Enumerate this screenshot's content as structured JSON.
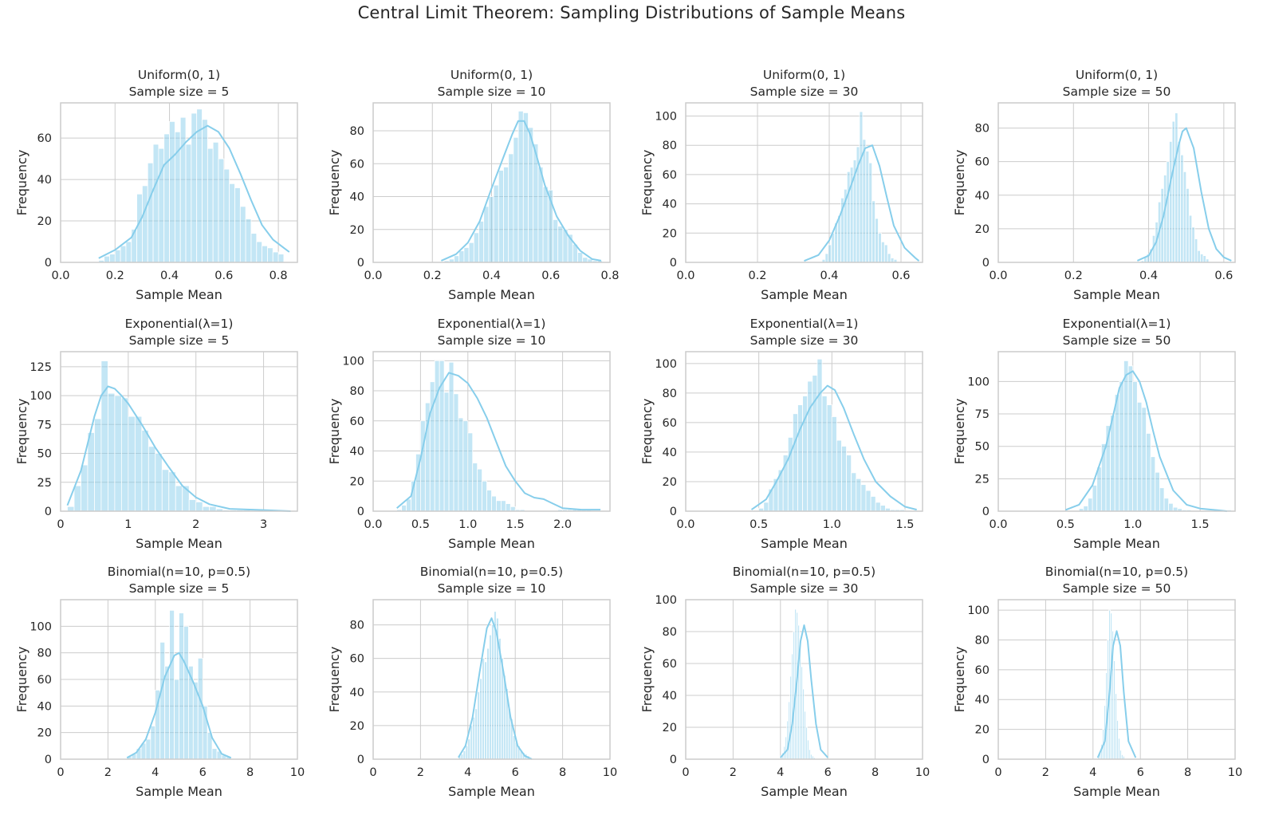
{
  "figure": {
    "title": "Central Limit Theorem: Sampling Distributions of Sample Means",
    "bar_color": "#87CEEB",
    "background": "#ffffff",
    "grid_color": "#cccccc"
  },
  "chart_data": [
    {
      "type": "histogram",
      "title": "Uniform(0, 1)",
      "subtitle": "Sample size = 5",
      "xlabel": "Sample Mean",
      "ylabel": "Frequency",
      "grid": true,
      "xlim": [
        0.0,
        0.87
      ],
      "ylim": [
        0,
        77
      ],
      "xticks": [
        0.0,
        0.2,
        0.4,
        0.6,
        0.8
      ],
      "xtick_labels": [
        "0.0",
        "0.2",
        "0.4",
        "0.6",
        "0.8"
      ],
      "yticks": [
        0,
        20,
        40,
        60
      ],
      "ytick_labels": [
        "0",
        "20",
        "40",
        "60"
      ],
      "bin_start": 0.14,
      "bin_width": 0.02,
      "values": [
        1,
        3,
        4,
        6,
        8,
        10,
        16,
        33,
        37,
        48,
        57,
        55,
        62,
        68,
        63,
        70,
        57,
        72,
        74,
        69,
        55,
        58,
        50,
        45,
        38,
        36,
        27,
        21,
        14,
        10,
        8,
        7,
        5,
        4
      ],
      "kde_x": [
        0.14,
        0.2,
        0.26,
        0.3,
        0.34,
        0.38,
        0.42,
        0.46,
        0.5,
        0.54,
        0.58,
        0.62,
        0.66,
        0.7,
        0.74,
        0.78,
        0.82,
        0.84
      ],
      "kde_y": [
        2,
        6,
        12,
        22,
        35,
        47,
        52,
        58,
        63,
        66,
        63,
        55,
        43,
        30,
        18,
        11,
        7,
        5
      ]
    },
    {
      "type": "histogram",
      "title": "Uniform(0, 1)",
      "subtitle": "Sample size = 10",
      "xlabel": "Sample Mean",
      "ylabel": "Frequency",
      "grid": true,
      "xlim": [
        0.0,
        0.8
      ],
      "ylim": [
        0,
        97
      ],
      "xticks": [
        0.0,
        0.2,
        0.4,
        0.6,
        0.8
      ],
      "xtick_labels": [
        "0.0",
        "0.2",
        "0.4",
        "0.6",
        "0.8"
      ],
      "yticks": [
        0,
        20,
        40,
        60,
        80
      ],
      "ytick_labels": [
        "0",
        "20",
        "40",
        "60",
        "80"
      ],
      "bin_start": 0.24,
      "bin_width": 0.0167,
      "values": [
        1,
        2,
        4,
        7,
        9,
        12,
        18,
        25,
        34,
        40,
        47,
        56,
        58,
        66,
        76,
        92,
        91,
        82,
        72,
        58,
        46,
        44,
        26,
        22,
        20,
        17,
        11,
        6,
        3,
        2,
        1,
        1
      ],
      "kde_x": [
        0.23,
        0.28,
        0.32,
        0.36,
        0.4,
        0.44,
        0.47,
        0.49,
        0.51,
        0.53,
        0.55,
        0.58,
        0.62,
        0.66,
        0.7,
        0.74,
        0.77
      ],
      "kde_y": [
        1,
        5,
        12,
        25,
        45,
        64,
        78,
        86,
        86,
        78,
        66,
        47,
        28,
        16,
        7,
        2,
        1
      ]
    },
    {
      "type": "histogram",
      "title": "Uniform(0, 1)",
      "subtitle": "Sample size = 30",
      "xlabel": "Sample Mean",
      "ylabel": "Frequency",
      "grid": true,
      "xlim": [
        0.0,
        0.66
      ],
      "ylim": [
        0,
        109
      ],
      "xticks": [
        0.0,
        0.2,
        0.4,
        0.6
      ],
      "xtick_labels": [
        "0.0",
        "0.2",
        "0.4",
        "0.6"
      ],
      "yticks": [
        0,
        20,
        40,
        60,
        80,
        100
      ],
      "ytick_labels": [
        "0",
        "20",
        "40",
        "60",
        "80",
        "100"
      ],
      "bin_start": 0.38,
      "bin_width": 0.0087,
      "values": [
        2,
        6,
        12,
        20,
        27,
        32,
        44,
        50,
        62,
        65,
        70,
        79,
        103,
        84,
        76,
        68,
        42,
        30,
        20,
        14,
        12,
        6,
        3,
        2
      ],
      "kde_x": [
        0.33,
        0.37,
        0.4,
        0.43,
        0.46,
        0.48,
        0.5,
        0.52,
        0.54,
        0.56,
        0.58,
        0.61,
        0.64,
        0.65
      ],
      "kde_y": [
        1,
        5,
        15,
        32,
        52,
        66,
        78,
        80,
        66,
        45,
        25,
        10,
        3,
        1
      ]
    },
    {
      "type": "histogram",
      "title": "Uniform(0, 1)",
      "subtitle": "Sample size = 50",
      "xlabel": "Sample Mean",
      "ylabel": "Frequency",
      "grid": true,
      "xlim": [
        0.0,
        0.63
      ],
      "ylim": [
        0,
        95
      ],
      "xticks": [
        0.0,
        0.2,
        0.4,
        0.6
      ],
      "xtick_labels": [
        "0.0",
        "0.2",
        "0.4",
        "0.6"
      ],
      "yticks": [
        0,
        20,
        40,
        60,
        80
      ],
      "ytick_labels": [
        "0",
        "20",
        "40",
        "60",
        "80"
      ],
      "bin_start": 0.38,
      "bin_width": 0.0075,
      "values": [
        1,
        3,
        5,
        8,
        16,
        24,
        36,
        44,
        52,
        60,
        72,
        84,
        89,
        72,
        64,
        54,
        44,
        28,
        21,
        14,
        7,
        5,
        4,
        2
      ],
      "kde_x": [
        0.37,
        0.4,
        0.42,
        0.44,
        0.46,
        0.48,
        0.49,
        0.5,
        0.52,
        0.54,
        0.56,
        0.58,
        0.6,
        0.62
      ],
      "kde_y": [
        1,
        4,
        12,
        28,
        50,
        70,
        78,
        80,
        68,
        42,
        20,
        8,
        3,
        1
      ]
    },
    {
      "type": "histogram",
      "title": "Exponential(λ=1)",
      "subtitle": "Sample size = 5",
      "xlabel": "Sample Mean",
      "ylabel": "Frequency",
      "grid": true,
      "xlim": [
        0.0,
        3.5
      ],
      "ylim": [
        0,
        138
      ],
      "xticks": [
        0,
        1,
        2,
        3
      ],
      "xtick_labels": [
        "0",
        "1",
        "2",
        "3"
      ],
      "yticks": [
        0,
        25,
        50,
        75,
        100,
        125
      ],
      "ytick_labels": [
        "0",
        "25",
        "50",
        "75",
        "100",
        "125"
      ],
      "bin_start": 0.1,
      "bin_width": 0.1,
      "values": [
        4,
        22,
        40,
        68,
        80,
        130,
        102,
        100,
        98,
        82,
        82,
        70,
        56,
        50,
        36,
        34,
        22,
        22,
        10,
        8,
        4,
        4,
        2,
        1,
        1,
        1,
        1,
        0,
        0,
        0,
        0,
        1,
        1
      ],
      "kde_x": [
        0.1,
        0.3,
        0.5,
        0.6,
        0.7,
        0.8,
        0.9,
        1.0,
        1.2,
        1.4,
        1.6,
        1.8,
        2.0,
        2.2,
        2.5,
        3.0,
        3.4
      ],
      "kde_y": [
        5,
        35,
        82,
        100,
        108,
        106,
        100,
        93,
        75,
        55,
        38,
        22,
        12,
        6,
        2,
        1,
        0
      ]
    },
    {
      "type": "histogram",
      "title": "Exponential(λ=1)",
      "subtitle": "Sample size = 10",
      "xlabel": "Sample Mean",
      "ylabel": "Frequency",
      "grid": true,
      "xlim": [
        0.0,
        2.5
      ],
      "ylim": [
        0,
        106
      ],
      "xticks": [
        0.0,
        0.5,
        1.0,
        1.5,
        2.0
      ],
      "xtick_labels": [
        "0.0",
        "0.5",
        "1.0",
        "1.5",
        "2.0"
      ],
      "yticks": [
        0,
        20,
        40,
        60,
        80,
        100
      ],
      "ytick_labels": [
        "0",
        "20",
        "40",
        "60",
        "80",
        "100"
      ],
      "bin_start": 0.2,
      "bin_width": 0.05,
      "values": [
        0,
        1,
        4,
        8,
        20,
        38,
        60,
        72,
        86,
        100,
        100,
        79,
        99,
        78,
        62,
        60,
        52,
        32,
        28,
        20,
        14,
        10,
        7,
        7,
        5,
        3,
        1,
        1,
        0,
        0,
        0,
        0,
        0,
        0,
        0,
        1,
        1,
        1,
        1,
        1,
        1,
        1
      ],
      "kde_x": [
        0.25,
        0.4,
        0.5,
        0.6,
        0.7,
        0.8,
        0.9,
        1.0,
        1.1,
        1.2,
        1.3,
        1.4,
        1.5,
        1.6,
        1.7,
        1.8,
        1.9,
        2.0,
        2.2,
        2.4
      ],
      "kde_y": [
        2,
        10,
        35,
        65,
        82,
        92,
        90,
        85,
        75,
        62,
        46,
        30,
        20,
        12,
        9,
        8,
        5,
        2,
        1,
        1
      ]
    },
    {
      "type": "histogram",
      "title": "Exponential(λ=1)",
      "subtitle": "Sample size = 30",
      "xlabel": "Sample Mean",
      "ylabel": "Frequency",
      "grid": true,
      "xlim": [
        0.0,
        1.62
      ],
      "ylim": [
        0,
        108
      ],
      "xticks": [
        0.0,
        0.5,
        1.0,
        1.5
      ],
      "xtick_labels": [
        "0.0",
        "0.5",
        "1.0",
        "1.5"
      ],
      "yticks": [
        0,
        20,
        40,
        60,
        80,
        100
      ],
      "ytick_labels": [
        "0",
        "20",
        "40",
        "60",
        "80",
        "100"
      ],
      "bin_start": 0.5,
      "bin_width": 0.0333,
      "values": [
        2,
        6,
        15,
        22,
        28,
        38,
        50,
        66,
        72,
        78,
        88,
        92,
        103,
        78,
        72,
        64,
        48,
        44,
        38,
        26,
        22,
        18,
        14,
        10,
        6,
        4,
        2,
        1,
        1,
        1
      ],
      "kde_x": [
        0.45,
        0.55,
        0.62,
        0.7,
        0.78,
        0.85,
        0.92,
        0.97,
        1.02,
        1.08,
        1.15,
        1.22,
        1.3,
        1.4,
        1.5,
        1.58
      ],
      "kde_y": [
        1,
        8,
        20,
        35,
        55,
        70,
        80,
        85,
        82,
        70,
        52,
        35,
        20,
        10,
        3,
        1
      ]
    },
    {
      "type": "histogram",
      "title": "Exponential(λ=1)",
      "subtitle": "Sample size = 50",
      "xlabel": "Sample Mean",
      "ylabel": "Frequency",
      "grid": true,
      "xlim": [
        0.0,
        1.76
      ],
      "ylim": [
        0,
        123
      ],
      "xticks": [
        0.0,
        0.5,
        1.0,
        1.5
      ],
      "xtick_labels": [
        "0.0",
        "0.5",
        "1.0",
        "1.5"
      ],
      "yticks": [
        0,
        25,
        50,
        75,
        100
      ],
      "ytick_labels": [
        "0",
        "25",
        "50",
        "75",
        "100"
      ],
      "bin_start": 0.6,
      "bin_width": 0.0333,
      "values": [
        2,
        4,
        10,
        20,
        34,
        52,
        66,
        74,
        90,
        100,
        116,
        112,
        100,
        84,
        80,
        60,
        42,
        30,
        18,
        10,
        6,
        3,
        2,
        1,
        1,
        0,
        0,
        0,
        0,
        0,
        0,
        0,
        0,
        1
      ],
      "kde_x": [
        0.5,
        0.6,
        0.7,
        0.8,
        0.85,
        0.9,
        0.95,
        1.0,
        1.05,
        1.1,
        1.15,
        1.2,
        1.3,
        1.4,
        1.5,
        1.7
      ],
      "kde_y": [
        1,
        5,
        20,
        50,
        72,
        95,
        105,
        108,
        100,
        84,
        62,
        42,
        16,
        5,
        2,
        0
      ]
    },
    {
      "type": "histogram",
      "title": "Binomial(n=10, p=0.5)",
      "subtitle": "Sample size = 5",
      "xlabel": "Sample Mean",
      "ylabel": "Frequency",
      "grid": true,
      "xlim": [
        0,
        10
      ],
      "ylim": [
        0,
        120
      ],
      "xticks": [
        0,
        2,
        4,
        6,
        8,
        10
      ],
      "xtick_labels": [
        "0",
        "2",
        "4",
        "6",
        "8",
        "10"
      ],
      "yticks": [
        0,
        20,
        40,
        60,
        80,
        100
      ],
      "ytick_labels": [
        "0",
        "20",
        "40",
        "60",
        "80",
        "100"
      ],
      "bin_start": 2.8,
      "bin_width": 0.2,
      "values": [
        2,
        4,
        8,
        12,
        15,
        25,
        52,
        88,
        70,
        112,
        60,
        110,
        100,
        70,
        58,
        76,
        40,
        20,
        8,
        6,
        3,
        2
      ],
      "kde_x": [
        2.8,
        3.2,
        3.6,
        4.0,
        4.4,
        4.8,
        5.0,
        5.2,
        5.6,
        6.0,
        6.4,
        6.8,
        7.2
      ],
      "kde_y": [
        1,
        5,
        15,
        35,
        62,
        78,
        80,
        74,
        58,
        40,
        16,
        4,
        1
      ]
    },
    {
      "type": "histogram",
      "title": "Binomial(n=10, p=0.5)",
      "subtitle": "Sample size = 10",
      "xlabel": "Sample Mean",
      "ylabel": "Frequency",
      "grid": true,
      "xlim": [
        0,
        10
      ],
      "ylim": [
        0,
        95
      ],
      "xticks": [
        0,
        2,
        4,
        6,
        8,
        10
      ],
      "xtick_labels": [
        "0",
        "2",
        "4",
        "6",
        "8",
        "10"
      ],
      "yticks": [
        0,
        20,
        40,
        60,
        80
      ],
      "ytick_labels": [
        "0",
        "20",
        "40",
        "60",
        "80"
      ],
      "bin_start": 3.6,
      "bin_width": 0.1,
      "values": [
        2,
        3,
        5,
        8,
        12,
        20,
        25,
        30,
        40,
        48,
        60,
        58,
        66,
        74,
        80,
        88,
        84,
        72,
        60,
        50,
        42,
        30,
        24,
        14,
        10,
        8,
        5,
        4,
        3,
        2,
        1
      ],
      "kde_x": [
        3.6,
        3.9,
        4.2,
        4.5,
        4.8,
        5.0,
        5.2,
        5.5,
        5.8,
        6.1,
        6.4,
        6.7
      ],
      "kde_y": [
        1,
        8,
        25,
        52,
        78,
        84,
        76,
        52,
        25,
        8,
        2,
        0
      ]
    },
    {
      "type": "histogram",
      "title": "Binomial(n=10, p=0.5)",
      "subtitle": "Sample size = 30",
      "xlabel": "Sample Mean",
      "ylabel": "Frequency",
      "grid": true,
      "xlim": [
        0,
        10
      ],
      "ylim": [
        0,
        100
      ],
      "xticks": [
        0,
        2,
        4,
        6,
        8,
        10
      ],
      "xtick_labels": [
        "0",
        "2",
        "4",
        "6",
        "8",
        "10"
      ],
      "yticks": [
        0,
        20,
        40,
        60,
        80,
        100
      ],
      "ytick_labels": [
        "0",
        "20",
        "40",
        "60",
        "80",
        "100"
      ],
      "bin_start": 4.0,
      "bin_width": 0.0667,
      "values": [
        2,
        4,
        8,
        14,
        24,
        36,
        52,
        66,
        80,
        94,
        92,
        84,
        72,
        58,
        44,
        30,
        20,
        12,
        6,
        3,
        2,
        1
      ],
      "kde_x": [
        4.0,
        4.3,
        4.5,
        4.7,
        4.85,
        5.0,
        5.15,
        5.3,
        5.5,
        5.7,
        6.0
      ],
      "kde_y": [
        1,
        6,
        22,
        50,
        74,
        84,
        74,
        50,
        22,
        6,
        1
      ]
    },
    {
      "type": "histogram",
      "title": "Binomial(n=10, p=0.5)",
      "subtitle": "Sample size = 50",
      "xlabel": "Sample Mean",
      "ylabel": "Frequency",
      "grid": true,
      "xlim": [
        0,
        10
      ],
      "ylim": [
        0,
        107
      ],
      "xticks": [
        0,
        2,
        4,
        6,
        8,
        10
      ],
      "xtick_labels": [
        "0",
        "2",
        "4",
        "6",
        "8",
        "10"
      ],
      "yticks": [
        0,
        20,
        40,
        60,
        80,
        100
      ],
      "ytick_labels": [
        "0",
        "20",
        "40",
        "60",
        "80",
        "100"
      ],
      "bin_start": 4.2,
      "bin_width": 0.0667,
      "values": [
        2,
        4,
        10,
        20,
        36,
        58,
        80,
        100,
        98,
        86,
        66,
        44,
        26,
        14,
        6,
        3,
        2
      ],
      "kde_x": [
        4.2,
        4.5,
        4.7,
        4.85,
        5.0,
        5.15,
        5.3,
        5.5,
        5.8
      ],
      "kde_y": [
        1,
        12,
        45,
        76,
        86,
        76,
        45,
        12,
        1
      ]
    }
  ]
}
